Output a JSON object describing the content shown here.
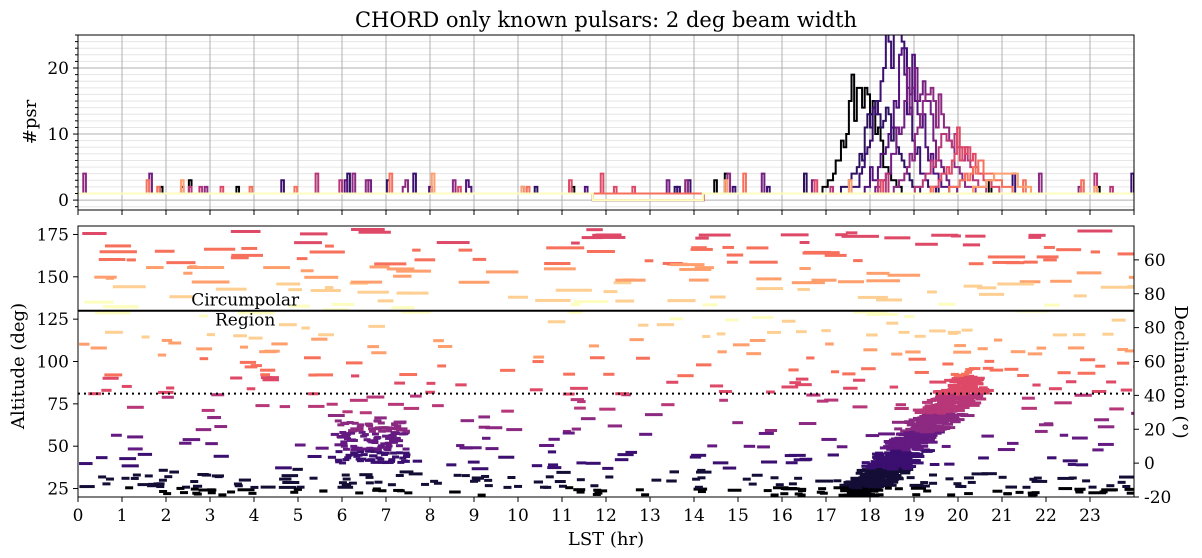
{
  "chart_data": [
    {
      "type": "line",
      "title": "CHORD only known pulsars: 2 deg beam width",
      "xlabel": "",
      "ylabel": "#psr",
      "xlim": [
        0,
        24
      ],
      "ylim": [
        -1.5,
        25
      ],
      "yticks": [
        0,
        10,
        20
      ],
      "grid": true,
      "series_note": "many overlapping traces colored by declination (magma colormap)",
      "series": [
        {
          "color": "#000004",
          "peak_lst": 17.8,
          "peak": 15,
          "baseline": 1,
          "offset": 0.0
        },
        {
          "color": "#2c115f",
          "peak_lst": 18.2,
          "peak": 13,
          "baseline": 1,
          "offset": 0.3
        },
        {
          "color": "#3b0f70",
          "peak_lst": 18.5,
          "peak": 24,
          "baseline": 1,
          "offset": 0.5
        },
        {
          "color": "#51127c",
          "peak_lst": 18.8,
          "peak": 19,
          "baseline": 1,
          "offset": 0.7
        },
        {
          "color": "#721f81",
          "peak_lst": 19.0,
          "peak": 17,
          "baseline": 1,
          "offset": 0.9
        },
        {
          "color": "#8c2981",
          "peak_lst": 19.4,
          "peak": 14,
          "baseline": 1,
          "offset": 1.1
        },
        {
          "color": "#b73779",
          "peak_lst": 19.8,
          "peak": 9,
          "baseline": 1,
          "offset": 1.3
        },
        {
          "color": "#de4968",
          "peak_lst": 20.1,
          "peak": 6,
          "baseline": 1,
          "offset": 1.5
        },
        {
          "color": "#f7705c",
          "peak_lst": 20.5,
          "peak": 4,
          "baseline": 1,
          "offset": 1.7
        },
        {
          "color": "#fe9f6d",
          "peak_lst": 21.0,
          "peak": 3,
          "baseline": 1,
          "offset": 1.9
        },
        {
          "color": "#fcfdbf",
          "peak_lst": 0,
          "peak": 0,
          "baseline": 0,
          "offset": 0.0
        }
      ]
    },
    {
      "type": "heatmap",
      "xlabel": "LST (hr)",
      "ylabel": "Altitude (deg)",
      "ylabel_right": "Declination (°)",
      "xlim": [
        0,
        24
      ],
      "ylim": [
        20,
        180
      ],
      "xticks": [
        0,
        1,
        2,
        3,
        4,
        5,
        6,
        7,
        8,
        9,
        10,
        11,
        12,
        13,
        14,
        15,
        16,
        17,
        18,
        19,
        20,
        21,
        22,
        23
      ],
      "yticks": [
        25,
        50,
        75,
        100,
        125,
        150,
        175
      ],
      "right_ticks": [
        {
          "label": "-20",
          "alt": 20
        },
        {
          "label": "0",
          "alt": 40
        },
        {
          "label": "20",
          "alt": 60
        },
        {
          "label": "40",
          "alt": 80
        },
        {
          "label": "60",
          "alt": 100
        },
        {
          "label": "80",
          "alt": 120
        },
        {
          "label": "80",
          "alt": 140
        },
        {
          "label": "60",
          "alt": 160
        }
      ],
      "circumpolar_line_alt": 130,
      "zenith_line_alt": 81,
      "annotation": {
        "line1": "Circumpolar",
        "line2": "Region",
        "lst": 3.8,
        "alt": 132
      },
      "colormap": "magma",
      "galactic_plane_lst": [
        17.6,
        20.3
      ],
      "galactic_plane_alt": [
        20,
        90
      ]
    }
  ]
}
